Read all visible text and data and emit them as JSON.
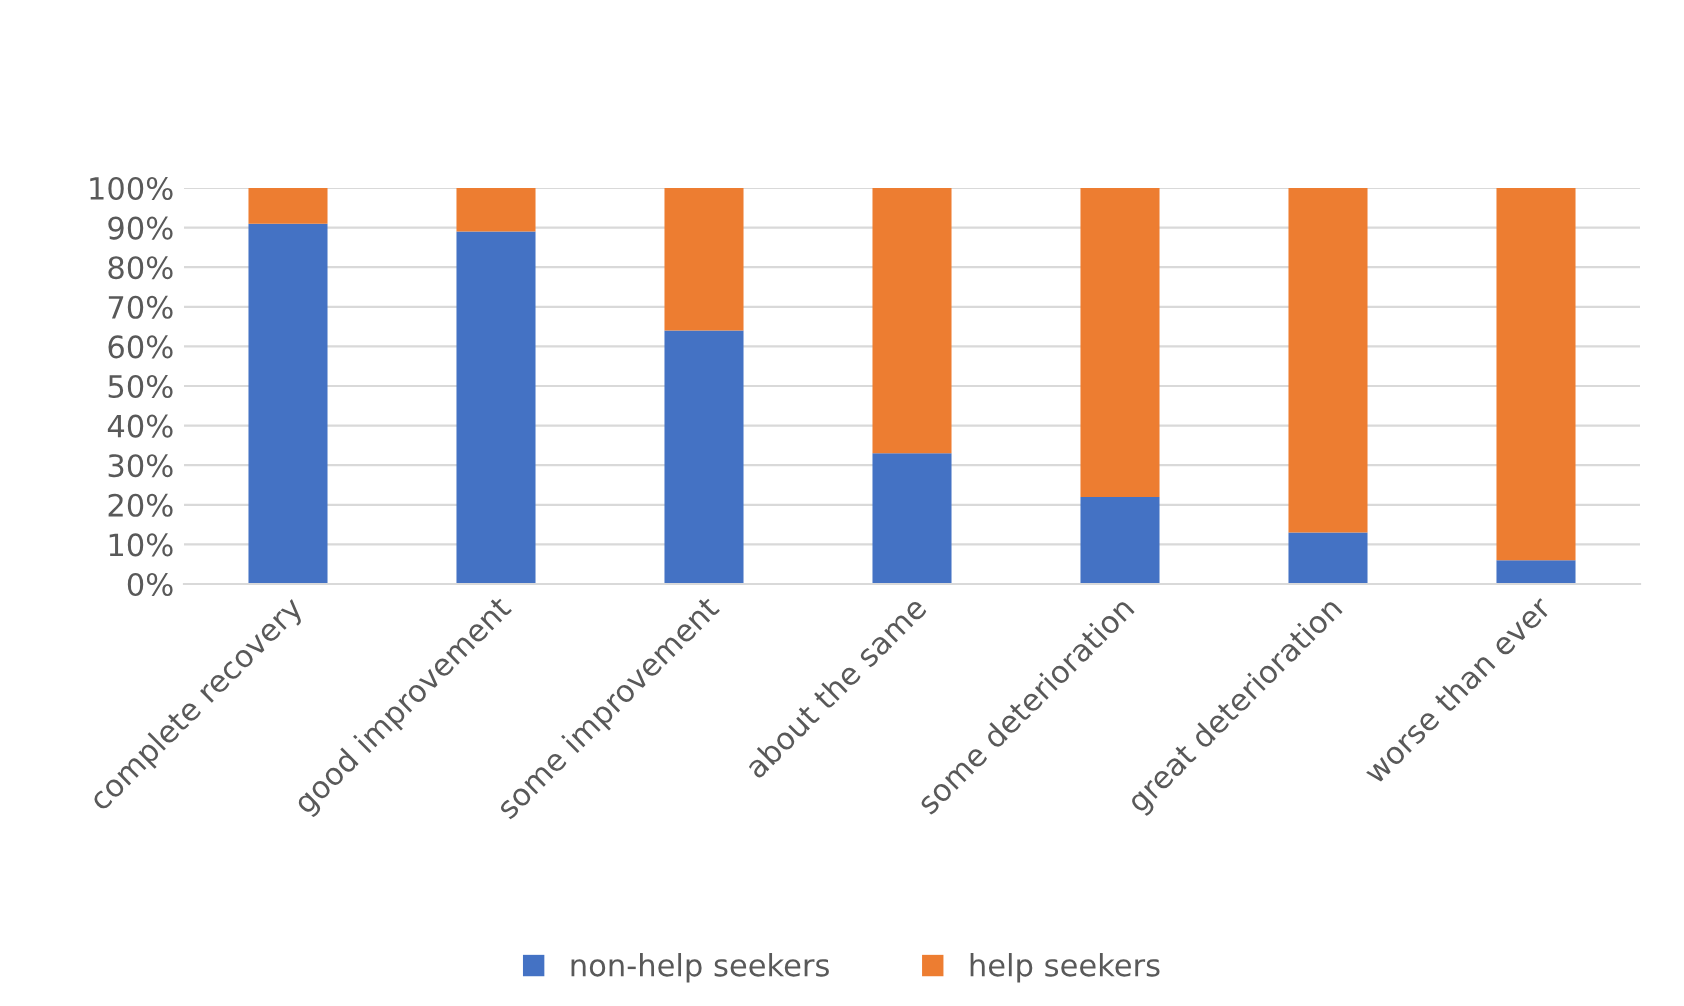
{
  "chart_data": {
    "type": "bar",
    "stacked": true,
    "categories": [
      "complete recovery",
      "good improvement",
      "some improvement",
      "about the same",
      "some deterioration",
      "great deterioration",
      "worse than ever"
    ],
    "series": [
      {
        "name": "non-help seekers",
        "color": "#4472c4",
        "values": [
          91,
          89,
          64,
          33,
          22,
          13,
          6
        ]
      },
      {
        "name": "help seekers",
        "color": "#ed7d31",
        "values": [
          9,
          11,
          36,
          67,
          78,
          87,
          94
        ]
      }
    ],
    "ylim": [
      0,
      100
    ],
    "yticks": [
      {
        "value": 0,
        "label": "0%"
      },
      {
        "value": 10,
        "label": "10%"
      },
      {
        "value": 20,
        "label": "20%"
      },
      {
        "value": 30,
        "label": "30%"
      },
      {
        "value": 40,
        "label": "40%"
      },
      {
        "value": 50,
        "label": "50%"
      },
      {
        "value": 60,
        "label": "60%"
      },
      {
        "value": 70,
        "label": "70%"
      },
      {
        "value": 80,
        "label": "80%"
      },
      {
        "value": 90,
        "label": "90%"
      },
      {
        "value": 100,
        "label": "100%"
      }
    ],
    "grid": "y",
    "legend": "bottom"
  }
}
